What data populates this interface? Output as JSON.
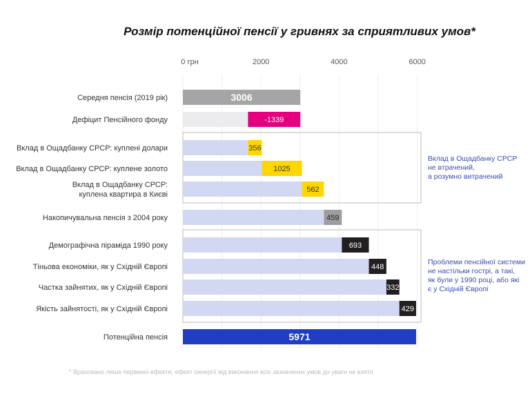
{
  "chart_data": {
    "type": "bar",
    "subtype": "waterfall",
    "title": "Розмір потенційної пенсії у гривнях за сприятливих умов*",
    "xlim": [
      0,
      6000
    ],
    "x_ticks": [
      {
        "value": 0,
        "label": "0 грн"
      },
      {
        "value": 2000,
        "label": "2000"
      },
      {
        "value": 4000,
        "label": "4000"
      },
      {
        "value": 6000,
        "label": "6000"
      }
    ],
    "grid": true,
    "bars": [
      {
        "label": [
          "Середня пенсія (2019 рік)"
        ],
        "start": 0,
        "value": 3006,
        "text": "3006",
        "color": "#a5a5a8",
        "text_color": "#ffffff",
        "bold": true
      },
      {
        "label": [
          "Дефіцит Пенсійного фонду"
        ],
        "start": 1667,
        "value": 1339,
        "text": "-1339",
        "color": "#e5007e",
        "text_color": "#ffffff",
        "base_color": "#ececee"
      },
      {
        "label": [
          "Вклад в Ощадбанку СРСР: куплені долари"
        ],
        "start": 1667,
        "value": 356,
        "text": "356",
        "color": "#ffd600",
        "text_color": "#333333",
        "base_color": "#d3d8f2"
      },
      {
        "label": [
          "Вклад в Ощадбанку СРСР: куплене золото"
        ],
        "start": 2023,
        "value": 1025,
        "text": "1025",
        "color": "#ffd600",
        "text_color": "#333333",
        "base_color": "#d3d8f2"
      },
      {
        "label": [
          "Вклад в Ощадбанку СРСР:",
          "куплена квартира в Києві"
        ],
        "start": 3048,
        "value": 562,
        "text": "562",
        "color": "#ffd600",
        "text_color": "#333333",
        "base_color": "#d3d8f2"
      },
      {
        "label": [
          "Накопичувальна пенсія з 2004 року"
        ],
        "start": 3610,
        "value": 459,
        "text": "459",
        "color": "#9e9ea0",
        "text_color": "#222222",
        "base_color": "#d3d8f2"
      },
      {
        "label": [
          "Демографічна піраміда 1990 року"
        ],
        "start": 4069,
        "value": 693,
        "text": "693",
        "color": "#231f20",
        "text_color": "#ffffff",
        "base_color": "#d3d8f2"
      },
      {
        "label": [
          "Тіньова економіки, як у Східній Європі"
        ],
        "start": 4762,
        "value": 448,
        "text": "448",
        "color": "#231f20",
        "text_color": "#ffffff",
        "base_color": "#d3d8f2"
      },
      {
        "label": [
          "Частка зайнятих, як у Східній Європі"
        ],
        "start": 5210,
        "value": 332,
        "text": "332",
        "color": "#231f20",
        "text_color": "#ffffff",
        "base_color": "#d3d8f2"
      },
      {
        "label": [
          "Якість зайнятості, як у Східній Європі"
        ],
        "start": 5542,
        "value": 429,
        "text": "429",
        "color": "#231f20",
        "text_color": "#ffffff",
        "base_color": "#d3d8f2"
      },
      {
        "label": [
          "Потенційна пенсія"
        ],
        "start": 0,
        "value": 5971,
        "text": "5971",
        "color": "#1f3ec3",
        "text_color": "#ffffff",
        "bold": true
      }
    ],
    "groups": [
      {
        "rows": [
          2,
          4
        ],
        "note": [
          "Вклад в Ощадбанку СРСР",
          "не втрачений,",
          "а розумно витрачений"
        ]
      },
      {
        "rows": [
          6,
          9
        ],
        "note": [
          "Проблеми пенсійної системи",
          "не настільки гострі, а такі,",
          "як були у 1990 році, або які",
          "є у Східній Європі"
        ]
      }
    ],
    "footnote": "* Враховано лише первинні ефекти, ефект синергії від виконання всіх зазначених умов до уваги не взято"
  }
}
